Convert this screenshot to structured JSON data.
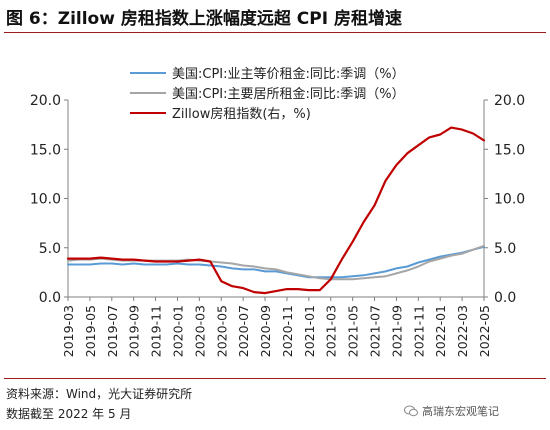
{
  "figure": {
    "title": "图 6：Zillow 房租指数上涨幅度远超 CPI 房租增速",
    "source": "资料来源：Wind，光大证券研究所",
    "date_note": "数据截至 2022 年 5 月",
    "watermark": "高瑞东宏观笔记"
  },
  "chart_data": {
    "type": "line",
    "x": [
      "2019-03",
      "2019-04",
      "2019-05",
      "2019-06",
      "2019-07",
      "2019-08",
      "2019-09",
      "2019-10",
      "2019-11",
      "2019-12",
      "2020-01",
      "2020-02",
      "2020-03",
      "2020-04",
      "2020-05",
      "2020-06",
      "2020-07",
      "2020-08",
      "2020-09",
      "2020-10",
      "2020-11",
      "2020-12",
      "2021-01",
      "2021-02",
      "2021-03",
      "2021-04",
      "2021-05",
      "2021-06",
      "2021-07",
      "2021-08",
      "2021-09",
      "2021-10",
      "2021-11",
      "2021-12",
      "2022-01",
      "2022-02",
      "2022-03",
      "2022-04",
      "2022-05"
    ],
    "x_tick_labels": [
      "2019-03",
      "2019-05",
      "2019-07",
      "2019-09",
      "2019-11",
      "2020-01",
      "2020-03",
      "2020-05",
      "2020-07",
      "2020-09",
      "2020-11",
      "2021-01",
      "2021-03",
      "2021-05",
      "2021-07",
      "2021-09",
      "2021-11",
      "2022-01",
      "2022-03",
      "2022-05"
    ],
    "y_left": {
      "lim": [
        0,
        20
      ],
      "ticks": [
        "0.0",
        "5.0",
        "10.0",
        "15.0",
        "20.0"
      ]
    },
    "y_right": {
      "lim": [
        0,
        20
      ],
      "ticks": [
        "0.0",
        "5.0",
        "10.0",
        "15.0",
        "20.0"
      ]
    },
    "legend_position": "top-center",
    "series": [
      {
        "name": "美国:CPI:业主等价租金:同比:季调（%）",
        "axis": "left",
        "color": "#5b9bd5",
        "values": [
          3.3,
          3.3,
          3.3,
          3.4,
          3.4,
          3.3,
          3.4,
          3.3,
          3.3,
          3.3,
          3.4,
          3.3,
          3.3,
          3.2,
          3.1,
          2.9,
          2.8,
          2.8,
          2.6,
          2.6,
          2.4,
          2.2,
          2.0,
          2.0,
          2.0,
          2.0,
          2.1,
          2.2,
          2.4,
          2.6,
          2.9,
          3.1,
          3.5,
          3.8,
          4.1,
          4.3,
          4.5,
          4.8,
          5.1
        ]
      },
      {
        "name": "美国:CPI:主要居所租金:同比:季调（%）",
        "axis": "left",
        "color": "#a6a6a6",
        "values": [
          3.7,
          3.8,
          3.8,
          3.9,
          3.8,
          3.7,
          3.7,
          3.7,
          3.7,
          3.7,
          3.7,
          3.8,
          3.7,
          3.6,
          3.5,
          3.4,
          3.2,
          3.1,
          2.9,
          2.8,
          2.5,
          2.3,
          2.1,
          1.9,
          1.8,
          1.8,
          1.8,
          1.9,
          2.0,
          2.1,
          2.4,
          2.7,
          3.1,
          3.6,
          3.9,
          4.2,
          4.4,
          4.8,
          5.2
        ]
      },
      {
        "name": "Zillow房租指数(右，%)",
        "axis": "right",
        "color": "#c00000",
        "values": [
          3.9,
          3.9,
          3.9,
          4.0,
          3.9,
          3.8,
          3.8,
          3.7,
          3.6,
          3.6,
          3.6,
          3.7,
          3.8,
          3.6,
          1.6,
          1.1,
          0.9,
          0.5,
          0.4,
          0.6,
          0.8,
          0.8,
          0.7,
          0.7,
          1.8,
          3.8,
          5.6,
          7.6,
          9.3,
          11.8,
          13.4,
          14.6,
          15.4,
          16.2,
          16.5,
          17.2,
          17.0,
          16.6,
          15.9
        ]
      }
    ]
  }
}
